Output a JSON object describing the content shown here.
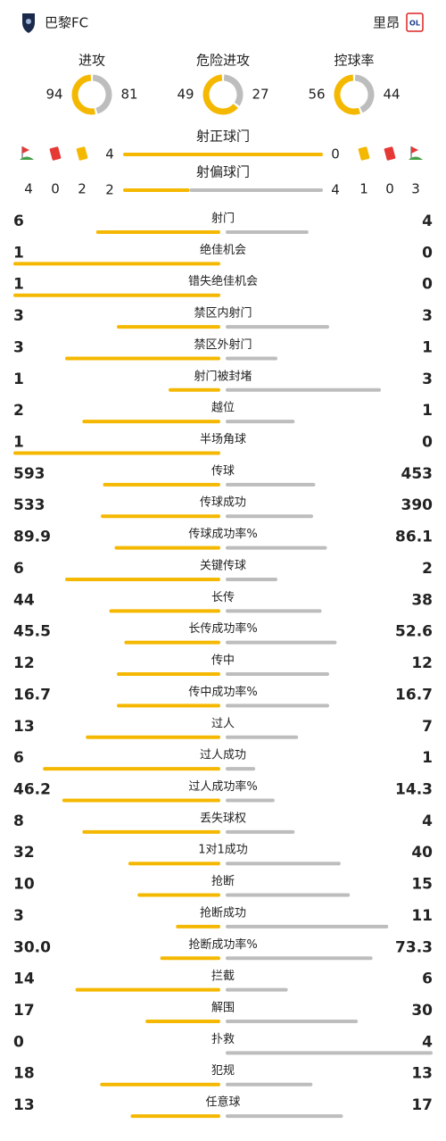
{
  "header": {
    "home": "巴黎FC",
    "away": "里昂"
  },
  "donuts": [
    {
      "label": "进攻",
      "home": 94,
      "away": 81
    },
    {
      "label": "危险进攻",
      "home": 49,
      "away": 27
    },
    {
      "label": "控球率",
      "home": 56,
      "away": 44
    }
  ],
  "cards": {
    "home": {
      "corners": 4,
      "red": 0,
      "yellow": 2
    },
    "away": {
      "yellow": 1,
      "red": 0,
      "corners": 3
    }
  },
  "shots": [
    {
      "label": "射正球门",
      "home": 4,
      "away": 0
    },
    {
      "label": "射偏球门",
      "home": 2,
      "away": 4
    }
  ],
  "rows": [
    {
      "label": "射门",
      "home": 6,
      "away": 4
    },
    {
      "label": "绝佳机会",
      "home": 1,
      "away": 0
    },
    {
      "label": "错失绝佳机会",
      "home": 1,
      "away": 0
    },
    {
      "label": "禁区内射门",
      "home": 3,
      "away": 3
    },
    {
      "label": "禁区外射门",
      "home": 3,
      "away": 1
    },
    {
      "label": "射门被封堵",
      "home": 1,
      "away": 3
    },
    {
      "label": "越位",
      "home": 2,
      "away": 1
    },
    {
      "label": "半场角球",
      "home": 1,
      "away": 0
    },
    {
      "label": "传球",
      "home": 593,
      "away": 453
    },
    {
      "label": "传球成功",
      "home": 533,
      "away": 390
    },
    {
      "label": "传球成功率%",
      "home": 89.9,
      "away": 86.1
    },
    {
      "label": "关键传球",
      "home": 6,
      "away": 2
    },
    {
      "label": "长传",
      "home": 44,
      "away": 38
    },
    {
      "label": "长传成功率%",
      "home": 45.5,
      "away": 52.6
    },
    {
      "label": "传中",
      "home": 12,
      "away": 12
    },
    {
      "label": "传中成功率%",
      "home": 16.7,
      "away": 16.7
    },
    {
      "label": "过人",
      "home": 13,
      "away": 7
    },
    {
      "label": "过人成功",
      "home": 6,
      "away": 1
    },
    {
      "label": "过人成功率%",
      "home": 46.2,
      "away": 14.3
    },
    {
      "label": "丢失球权",
      "home": 8,
      "away": 4
    },
    {
      "label": "1对1成功",
      "home": 32,
      "away": 40
    },
    {
      "label": "抢断",
      "home": 10,
      "away": 15
    },
    {
      "label": "抢断成功",
      "home": 3,
      "away": 11
    },
    {
      "label": "抢断成功率%",
      "home": {
        "value": 30.0,
        "label": "30.0"
      },
      "away": 73.3
    },
    {
      "label": "拦截",
      "home": 14,
      "away": 6
    },
    {
      "label": "解围",
      "home": 17,
      "away": 30
    },
    {
      "label": "扑救",
      "home": 0,
      "away": 4
    },
    {
      "label": "犯规",
      "home": 18,
      "away": 13
    },
    {
      "label": "任意球",
      "home": 13,
      "away": 17
    }
  ]
}
